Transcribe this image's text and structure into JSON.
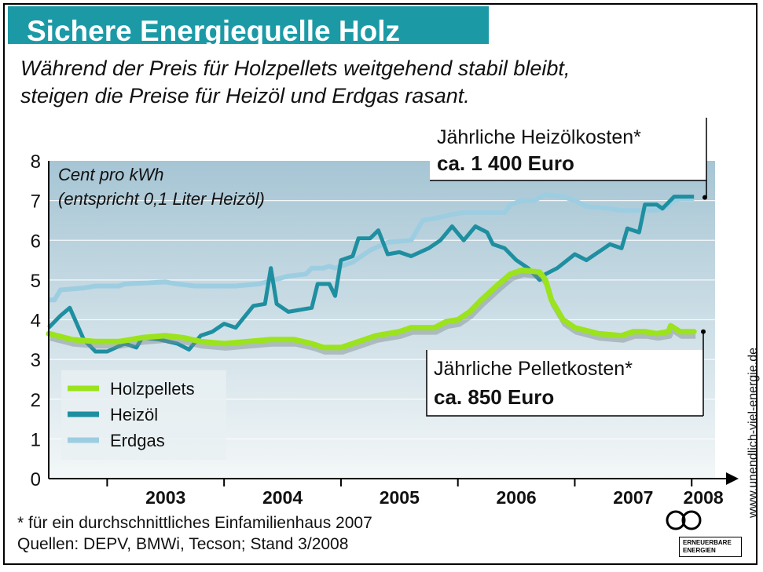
{
  "header": {
    "title": "Sichere Energiequelle Holz",
    "subtitle_lines": [
      "Während der Preis für Holzpellets weitgehend stabil bleibt,",
      "steigen die Preise für Heizöl und Erdgas rasant."
    ]
  },
  "colors": {
    "title_bar": "#1b9aa6",
    "holzpellets": "#9be31d",
    "heizoel": "#1e8fa0",
    "erdgas": "#9dcde0",
    "plot_top": "#a6c5d4",
    "plot_bottom": "#f3f7f8"
  },
  "chart_data": {
    "type": "line",
    "unit_note_lines": [
      "Cent pro kWh",
      "(entspricht 0,1 Liter Heizöl)"
    ],
    "ylim": [
      0,
      8
    ],
    "xlim": [
      2002.5,
      2008.2
    ],
    "y_ticks": [
      "0",
      "1",
      "2",
      "3",
      "4",
      "5",
      "6",
      "7",
      "8"
    ],
    "x_ticks": [
      "2003",
      "2004",
      "2005",
      "2006",
      "2007",
      "2008"
    ],
    "legend_position": "bottom-left",
    "grid": true,
    "series": [
      {
        "name": "Holzpellets",
        "points": [
          [
            2002.5,
            3.65
          ],
          [
            2002.7,
            3.5
          ],
          [
            2002.9,
            3.45
          ],
          [
            2003.1,
            3.45
          ],
          [
            2003.3,
            3.55
          ],
          [
            2003.5,
            3.6
          ],
          [
            2003.65,
            3.55
          ],
          [
            2003.8,
            3.45
          ],
          [
            2004.0,
            3.4
          ],
          [
            2004.2,
            3.45
          ],
          [
            2004.4,
            3.5
          ],
          [
            2004.6,
            3.5
          ],
          [
            2004.75,
            3.4
          ],
          [
            2004.85,
            3.3
          ],
          [
            2005.0,
            3.3
          ],
          [
            2005.1,
            3.4
          ],
          [
            2005.3,
            3.6
          ],
          [
            2005.5,
            3.7
          ],
          [
            2005.6,
            3.8
          ],
          [
            2005.8,
            3.8
          ],
          [
            2005.9,
            3.95
          ],
          [
            2006.0,
            4.0
          ],
          [
            2006.1,
            4.2
          ],
          [
            2006.2,
            4.5
          ],
          [
            2006.35,
            4.9
          ],
          [
            2006.45,
            5.15
          ],
          [
            2006.55,
            5.25
          ],
          [
            2006.7,
            5.2
          ],
          [
            2006.75,
            5.0
          ],
          [
            2006.8,
            4.5
          ],
          [
            2006.9,
            4.0
          ],
          [
            2007.0,
            3.8
          ],
          [
            2007.2,
            3.65
          ],
          [
            2007.4,
            3.6
          ],
          [
            2007.5,
            3.7
          ],
          [
            2007.6,
            3.7
          ],
          [
            2007.7,
            3.65
          ],
          [
            2007.8,
            3.7
          ],
          [
            2007.82,
            3.85
          ],
          [
            2007.9,
            3.7
          ],
          [
            2008.02,
            3.7
          ]
        ]
      },
      {
        "name": "Heizöl",
        "points": [
          [
            2002.5,
            3.8
          ],
          [
            2002.6,
            4.1
          ],
          [
            2002.68,
            4.3
          ],
          [
            2002.8,
            3.5
          ],
          [
            2002.9,
            3.2
          ],
          [
            2003.0,
            3.2
          ],
          [
            2003.15,
            3.4
          ],
          [
            2003.25,
            3.3
          ],
          [
            2003.3,
            3.55
          ],
          [
            2003.45,
            3.5
          ],
          [
            2003.6,
            3.4
          ],
          [
            2003.7,
            3.25
          ],
          [
            2003.8,
            3.6
          ],
          [
            2003.9,
            3.7
          ],
          [
            2004.0,
            3.9
          ],
          [
            2004.1,
            3.8
          ],
          [
            2004.25,
            4.35
          ],
          [
            2004.35,
            4.4
          ],
          [
            2004.4,
            5.3
          ],
          [
            2004.45,
            4.4
          ],
          [
            2004.55,
            4.2
          ],
          [
            2004.75,
            4.3
          ],
          [
            2004.8,
            4.9
          ],
          [
            2004.9,
            4.9
          ],
          [
            2004.95,
            4.6
          ],
          [
            2005.0,
            5.5
          ],
          [
            2005.1,
            5.6
          ],
          [
            2005.15,
            6.05
          ],
          [
            2005.25,
            6.05
          ],
          [
            2005.32,
            6.25
          ],
          [
            2005.4,
            5.65
          ],
          [
            2005.5,
            5.7
          ],
          [
            2005.6,
            5.6
          ],
          [
            2005.75,
            5.8
          ],
          [
            2005.85,
            6.0
          ],
          [
            2005.95,
            6.35
          ],
          [
            2006.05,
            6.0
          ],
          [
            2006.15,
            6.35
          ],
          [
            2006.25,
            6.2
          ],
          [
            2006.3,
            5.9
          ],
          [
            2006.4,
            5.8
          ],
          [
            2006.5,
            5.5
          ],
          [
            2006.6,
            5.3
          ],
          [
            2006.7,
            5.0
          ],
          [
            2006.75,
            5.15
          ],
          [
            2006.85,
            5.3
          ],
          [
            2007.0,
            5.65
          ],
          [
            2007.1,
            5.5
          ],
          [
            2007.25,
            5.8
          ],
          [
            2007.3,
            5.9
          ],
          [
            2007.4,
            5.8
          ],
          [
            2007.45,
            6.3
          ],
          [
            2007.55,
            6.2
          ],
          [
            2007.6,
            6.9
          ],
          [
            2007.7,
            6.9
          ],
          [
            2007.75,
            6.8
          ],
          [
            2007.85,
            7.1
          ],
          [
            2008.02,
            7.1
          ]
        ]
      },
      {
        "name": "Erdgas",
        "points": [
          [
            2002.5,
            4.5
          ],
          [
            2002.55,
            4.5
          ],
          [
            2002.6,
            4.75
          ],
          [
            2002.8,
            4.8
          ],
          [
            2002.9,
            4.85
          ],
          [
            2003.1,
            4.85
          ],
          [
            2003.15,
            4.9
          ],
          [
            2003.5,
            4.95
          ],
          [
            2003.6,
            4.9
          ],
          [
            2003.75,
            4.85
          ],
          [
            2004.0,
            4.85
          ],
          [
            2004.1,
            4.85
          ],
          [
            2004.3,
            4.9
          ],
          [
            2004.55,
            5.1
          ],
          [
            2004.7,
            5.15
          ],
          [
            2004.75,
            5.3
          ],
          [
            2004.85,
            5.3
          ],
          [
            2004.9,
            5.35
          ],
          [
            2004.95,
            5.3
          ],
          [
            2005.1,
            5.45
          ],
          [
            2005.25,
            5.75
          ],
          [
            2005.4,
            5.95
          ],
          [
            2005.6,
            6.0
          ],
          [
            2005.7,
            6.5
          ],
          [
            2005.8,
            6.55
          ],
          [
            2005.95,
            6.65
          ],
          [
            2006.05,
            6.7
          ],
          [
            2006.2,
            6.7
          ],
          [
            2006.4,
            6.7
          ],
          [
            2006.45,
            6.9
          ],
          [
            2006.55,
            7.0
          ],
          [
            2006.65,
            7.0
          ],
          [
            2006.75,
            7.15
          ],
          [
            2006.9,
            7.1
          ],
          [
            2007.0,
            7.0
          ],
          [
            2007.1,
            6.85
          ],
          [
            2007.3,
            6.8
          ],
          [
            2007.4,
            6.75
          ],
          [
            2007.6,
            6.75
          ],
          [
            2007.7,
            6.75
          ],
          [
            2007.8,
            6.85
          ],
          [
            2007.85,
            7.0
          ],
          [
            2007.9,
            7.05
          ],
          [
            2008.02,
            7.05
          ]
        ]
      }
    ],
    "annotations": [
      {
        "line1": "Jährliche Heizölkosten*",
        "line2": "ca. 1 400 Euro"
      },
      {
        "line1": "Jährliche Pelletkosten*",
        "line2": "ca. 850 Euro"
      }
    ]
  },
  "footer": {
    "footnote": "* für ein durchschnittliches Einfamilienhaus 2007",
    "sources": "Quellen: DEPV, BMWi, Tecson; Stand 3/2008",
    "website": "www.unendlich-viel-energie.de",
    "logo_line1": "ERNEUERBARE",
    "logo_line2": "ENERGIEN"
  }
}
